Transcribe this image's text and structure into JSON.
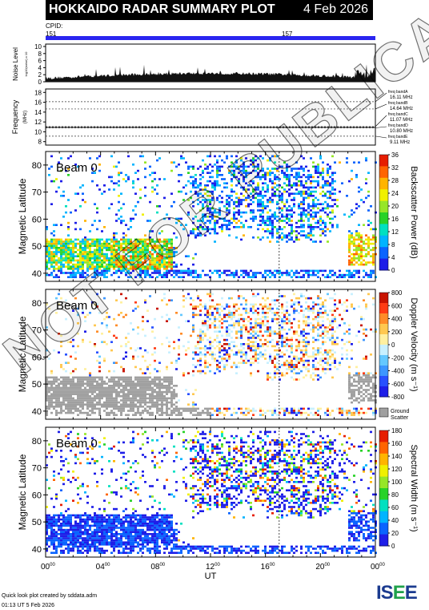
{
  "header": {
    "title": "HOKKAIDO RADAR SUMMARY PLOT",
    "date": "4 Feb 2026"
  },
  "cpid": {
    "label": "CPID:",
    "values": [
      {
        "id": "151",
        "start_ut": 0
      },
      {
        "id": "157",
        "start_ut": 17.0
      }
    ],
    "color": "#2a25f0"
  },
  "noise_panel": {
    "ylabel": "Noise Level",
    "ylabel_sub": "log10(noise) x 10",
    "ticks": [
      "10",
      "8",
      "6",
      "4",
      "2",
      "0"
    ]
  },
  "frequency_panel": {
    "ylabel": "Frequency",
    "ylabel_unit": "(MHz)",
    "ticks": [
      "18",
      "16",
      "14",
      "12",
      "10",
      "8"
    ],
    "bands": [
      {
        "label": "freq bandA",
        "value": "16.11 MHz",
        "mhz": 16.11
      },
      {
        "label": "freq bandB",
        "value": "14.64 MHz",
        "mhz": 14.64
      },
      {
        "label": "freq bandC",
        "value": "11.07 MHz",
        "mhz": 11.07
      },
      {
        "label": "freq bandD",
        "value": "10.80 MHz",
        "mhz": 10.8
      },
      {
        "label": "freq bandE",
        "value": "9.11 MHz",
        "mhz": 9.11
      }
    ]
  },
  "panels": [
    {
      "beam_label": "Beam  0",
      "ylabel": "Magnetic Latitude",
      "yticks": [
        "80",
        "70",
        "60",
        "50",
        "40"
      ],
      "colorbar_label": "Backscatter Power (dB)",
      "colorbar_ticks": [
        "36",
        "32",
        "28",
        "24",
        "20",
        "16",
        "12",
        "8",
        "4",
        "0"
      ]
    },
    {
      "beam_label": "Beam  0",
      "ylabel": "Magnetic Latitude",
      "yticks": [
        "80",
        "70",
        "60",
        "50",
        "40"
      ],
      "colorbar_label": "Doppler Velocity (m s⁻¹)",
      "colorbar_ticks": [
        "800",
        "600",
        "400",
        "200",
        "0",
        "-200",
        "-400",
        "-600",
        "-800"
      ],
      "ground_label_1": "Ground",
      "ground_label_2": "Scatter"
    },
    {
      "beam_label": "Beam  0",
      "ylabel": "Magnetic Latitude",
      "yticks": [
        "80",
        "70",
        "60",
        "50",
        "40"
      ],
      "colorbar_label": "Spectral Width (m s⁻¹)",
      "colorbar_ticks": [
        "180",
        "160",
        "140",
        "120",
        "100",
        "80",
        "60",
        "40",
        "20",
        "0"
      ]
    }
  ],
  "xaxis": {
    "label": "UT",
    "ticks": [
      "00",
      "04",
      "08",
      "12",
      "16",
      "20",
      "00"
    ],
    "tick_sup": "00"
  },
  "footer": {
    "line1": "Quick look plot created by sddata.adm",
    "line2": "01:13 UT  5 Feb 2026"
  },
  "logo": {
    "text": "ISEE"
  },
  "watermark": "NOT FOR PUBLICATION",
  "chart_data": {
    "type": "heatmap",
    "title": "HOKKAIDO RADAR SUMMARY PLOT",
    "x": {
      "label": "UT",
      "range_hours": [
        0,
        24
      ]
    },
    "y": {
      "label": "Magnetic Latitude",
      "range_deg": [
        37,
        85
      ]
    },
    "ground_scatter_color": "#a0a0a0"
  }
}
